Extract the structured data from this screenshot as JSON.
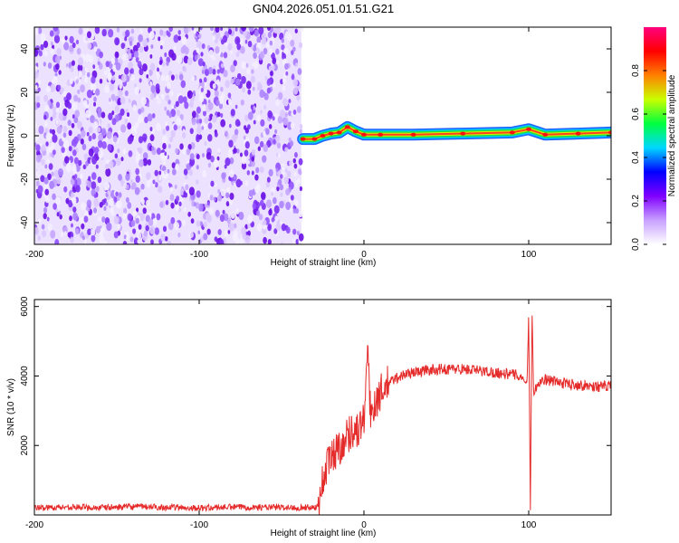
{
  "title": "GN04.2026.051.01.51.G21",
  "chart_data": [
    {
      "type": "heatmap",
      "name": "spectrogram",
      "xlabel": "Height of straight line (km)",
      "ylabel": "Frequency (Hz)",
      "xlim": [
        -200,
        150
      ],
      "ylim": [
        -50,
        50
      ],
      "x_ticks": [
        -200,
        -100,
        0,
        100
      ],
      "y_ticks": [
        -40,
        -20,
        0,
        20,
        40
      ],
      "noise_region": {
        "x": [
          -200,
          -38
        ],
        "y": [
          -50,
          50
        ]
      },
      "ridge": {
        "x": [
          -37,
          -30,
          -25,
          -20,
          -15,
          -10,
          -5,
          0,
          10,
          30,
          60,
          90,
          100,
          110,
          130,
          150
        ],
        "y": [
          -1.5,
          -1.5,
          0,
          1,
          1.5,
          4,
          2,
          0.5,
          0.5,
          0.5,
          1,
          1.5,
          3,
          0.5,
          1,
          1.5
        ],
        "amplitude": [
          0.35,
          0.55,
          0.6,
          0.7,
          0.85,
          0.8,
          0.7,
          0.75,
          0.8,
          0.85,
          0.75,
          0.8,
          0.6,
          0.75,
          0.8,
          0.85
        ]
      },
      "colorbar": {
        "label": "Normalized spectral amplitude",
        "range": [
          0,
          1
        ],
        "ticks": [
          "0.0",
          "0.2",
          "0.4",
          "0.6",
          "0.8"
        ],
        "colors": [
          "#ffffff",
          "#c8a0ff",
          "#8000ff",
          "#0000ff",
          "#00d8ff",
          "#00ff40",
          "#c8ff00",
          "#ff8000",
          "#ff0000",
          "#ff0080"
        ]
      },
      "grid": false
    },
    {
      "type": "line",
      "name": "snr",
      "xlabel": "Height of straight line (km)",
      "ylabel": "SNR (10 * v/v)",
      "xlim": [
        -200,
        150
      ],
      "ylim": [
        0,
        6200
      ],
      "x_ticks": [
        -200,
        -100,
        0,
        100
      ],
      "y_ticks": [
        2000,
        4000,
        6000
      ],
      "series": [
        {
          "color": "#e52a2a",
          "x": [
            -200,
            -180,
            -160,
            -140,
            -120,
            -100,
            -80,
            -60,
            -40,
            -28,
            -26,
            -22,
            -18,
            -14,
            -10,
            -6,
            -4,
            -2,
            0,
            2,
            4,
            6,
            10,
            15,
            20,
            25,
            30,
            40,
            50,
            60,
            70,
            80,
            90,
            95,
            99,
            100,
            101,
            102,
            103,
            105,
            110,
            120,
            130,
            140,
            150
          ],
          "y": [
            200,
            230,
            210,
            240,
            220,
            200,
            230,
            220,
            210,
            230,
            800,
            1500,
            1800,
            2000,
            2300,
            2500,
            2400,
            2600,
            2700,
            4800,
            2900,
            3200,
            3500,
            3800,
            3950,
            4050,
            4100,
            4180,
            4200,
            4200,
            4150,
            4100,
            4050,
            4000,
            3800,
            5800,
            100,
            6000,
            3400,
            3800,
            3900,
            3800,
            3750,
            3700,
            3700
          ]
        }
      ],
      "grid": false
    }
  ]
}
